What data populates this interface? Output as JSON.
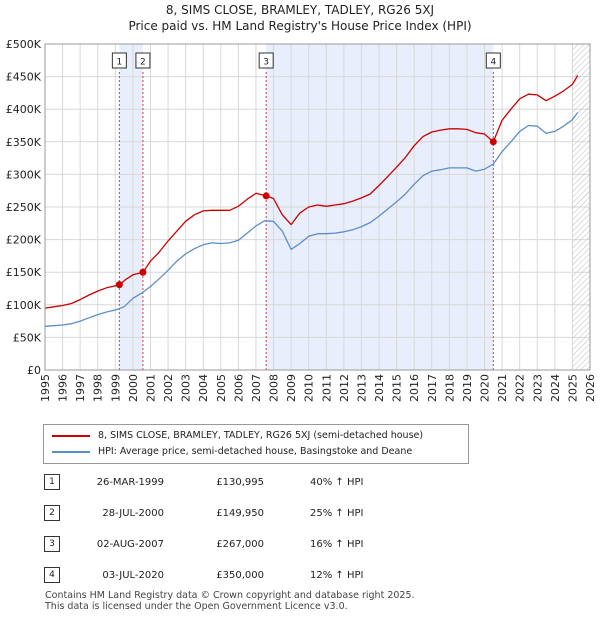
{
  "title_line1": "8, SIMS CLOSE, BRAMLEY, TADLEY, RG26 5XJ",
  "title_line2": "Price paid vs. HM Land Registry's House Price Index (HPI)",
  "colors": {
    "property": "#cc0000",
    "hpi": "#5b8ec9",
    "shade": "#e8eefb",
    "marker_line": "#cc4444",
    "grid": "#d8d8d8"
  },
  "chart_data": {
    "type": "line",
    "title": "8, SIMS CLOSE, BRAMLEY, TADLEY, RG26 5XJ",
    "subtitle": "Price paid vs. HM Land Registry's House Price Index (HPI)",
    "xlabel": "",
    "ylabel": "",
    "xlim": [
      1995,
      2026
    ],
    "ylim": [
      0,
      500000
    ],
    "y_ticks": [
      {
        "v": 0,
        "label": "£0"
      },
      {
        "v": 50000,
        "label": "£50K"
      },
      {
        "v": 100000,
        "label": "£100K"
      },
      {
        "v": 150000,
        "label": "£150K"
      },
      {
        "v": 200000,
        "label": "£200K"
      },
      {
        "v": 250000,
        "label": "£250K"
      },
      {
        "v": 300000,
        "label": "£300K"
      },
      {
        "v": 350000,
        "label": "£350K"
      },
      {
        "v": 400000,
        "label": "£400K"
      },
      {
        "v": 450000,
        "label": "£450K"
      },
      {
        "v": 500000,
        "label": "£500K"
      }
    ],
    "x_ticks": [
      "1995",
      "1996",
      "1997",
      "1998",
      "1999",
      "2000",
      "2001",
      "2002",
      "2003",
      "2004",
      "2005",
      "2006",
      "2007",
      "2008",
      "2009",
      "2010",
      "2011",
      "2012",
      "2013",
      "2014",
      "2015",
      "2016",
      "2017",
      "2018",
      "2019",
      "2020",
      "2021",
      "2022",
      "2023",
      "2024",
      "2025",
      "2026"
    ],
    "grid": true,
    "shaded_spans": [
      [
        1999.23,
        2000.57
      ],
      [
        2007.58,
        2020.5
      ]
    ],
    "future_hatch_from": 2025.0,
    "series": [
      {
        "name": "8, SIMS CLOSE, BRAMLEY, TADLEY, RG26 5XJ (semi-detached house)",
        "color": "#cc0000",
        "x": [
          1995.0,
          1995.5,
          1996.0,
          1996.5,
          1997.0,
          1997.5,
          1998.0,
          1998.5,
          1999.0,
          1999.23,
          1999.6,
          2000.0,
          2000.57,
          2001.0,
          2001.5,
          2002.0,
          2002.5,
          2003.0,
          2003.5,
          2004.0,
          2004.5,
          2005.0,
          2005.5,
          2006.0,
          2006.5,
          2007.0,
          2007.58,
          2008.0,
          2008.5,
          2009.0,
          2009.5,
          2010.0,
          2010.5,
          2011.0,
          2011.5,
          2012.0,
          2012.5,
          2013.0,
          2013.5,
          2014.0,
          2014.5,
          2015.0,
          2015.5,
          2016.0,
          2016.5,
          2017.0,
          2017.5,
          2018.0,
          2018.5,
          2019.0,
          2019.5,
          2020.0,
          2020.5,
          2021.0,
          2021.5,
          2022.0,
          2022.5,
          2023.0,
          2023.5,
          2024.0,
          2024.5,
          2025.0,
          2025.3
        ],
        "y": [
          95000,
          97000,
          99000,
          102000,
          108000,
          115000,
          121000,
          126000,
          129000,
          130995,
          139000,
          146000,
          149950,
          167000,
          181000,
          198000,
          213000,
          228000,
          238000,
          244000,
          245000,
          245000,
          245000,
          251000,
          262000,
          271000,
          267000,
          263000,
          238000,
          223000,
          241000,
          250000,
          253000,
          251000,
          253000,
          255000,
          259000,
          264000,
          270000,
          283000,
          297000,
          311000,
          326000,
          344000,
          358000,
          365000,
          368000,
          370000,
          370000,
          369000,
          364000,
          362000,
          350000,
          383000,
          400000,
          416000,
          423000,
          422000,
          413000,
          420000,
          428000,
          438000,
          452000
        ]
      },
      {
        "name": "HPI: Average price, semi-detached house, Basingstoke and Deane",
        "color": "#5b8ec9",
        "x": [
          1995.0,
          1995.5,
          1996.0,
          1996.5,
          1997.0,
          1997.5,
          1998.0,
          1998.5,
          1999.0,
          1999.5,
          2000.0,
          2000.5,
          2001.0,
          2001.5,
          2002.0,
          2002.5,
          2003.0,
          2003.5,
          2004.0,
          2004.5,
          2005.0,
          2005.5,
          2006.0,
          2006.5,
          2007.0,
          2007.5,
          2008.0,
          2008.5,
          2009.0,
          2009.5,
          2010.0,
          2010.5,
          2011.0,
          2011.5,
          2012.0,
          2012.5,
          2013.0,
          2013.5,
          2014.0,
          2014.5,
          2015.0,
          2015.5,
          2016.0,
          2016.5,
          2017.0,
          2017.5,
          2018.0,
          2018.5,
          2019.0,
          2019.5,
          2020.0,
          2020.5,
          2021.0,
          2021.5,
          2022.0,
          2022.5,
          2023.0,
          2023.5,
          2024.0,
          2024.5,
          2025.0,
          2025.3
        ],
        "y": [
          67000,
          68000,
          69000,
          71000,
          75000,
          80000,
          85000,
          89000,
          92000,
          97000,
          110000,
          118000,
          128000,
          140000,
          153000,
          167000,
          178000,
          186000,
          192000,
          195000,
          194000,
          195000,
          199000,
          210000,
          221000,
          229000,
          228000,
          213000,
          185000,
          194000,
          205000,
          209000,
          209000,
          210000,
          212000,
          215000,
          220000,
          226000,
          236000,
          247000,
          258000,
          270000,
          285000,
          298000,
          305000,
          307000,
          310000,
          310000,
          310000,
          305000,
          308000,
          316000,
          335000,
          350000,
          366000,
          375000,
          374000,
          363000,
          366000,
          374000,
          384000,
          395000
        ]
      }
    ],
    "sale_markers": [
      {
        "n": "1",
        "x": 1999.23,
        "y": 130995
      },
      {
        "n": "2",
        "x": 2000.57,
        "y": 149950
      },
      {
        "n": "3",
        "x": 2007.58,
        "y": 267000
      },
      {
        "n": "4",
        "x": 2020.5,
        "y": 350000
      }
    ]
  },
  "legend": {
    "property": "8, SIMS CLOSE, BRAMLEY, TADLEY, RG26 5XJ (semi-detached house)",
    "hpi": "HPI: Average price, semi-detached house, Basingstoke and Deane"
  },
  "sales": [
    {
      "n": "1",
      "date": "26-MAR-1999",
      "price": "£130,995",
      "hpi": "40% ↑ HPI"
    },
    {
      "n": "2",
      "date": "28-JUL-2000",
      "price": "£149,950",
      "hpi": "25% ↑ HPI"
    },
    {
      "n": "3",
      "date": "02-AUG-2007",
      "price": "£267,000",
      "hpi": "16% ↑ HPI"
    },
    {
      "n": "4",
      "date": "03-JUL-2020",
      "price": "£350,000",
      "hpi": "12% ↑ HPI"
    }
  ],
  "footer": {
    "line1": "Contains HM Land Registry data © Crown copyright and database right 2025.",
    "line2": "This data is licensed under the Open Government Licence v3.0."
  }
}
